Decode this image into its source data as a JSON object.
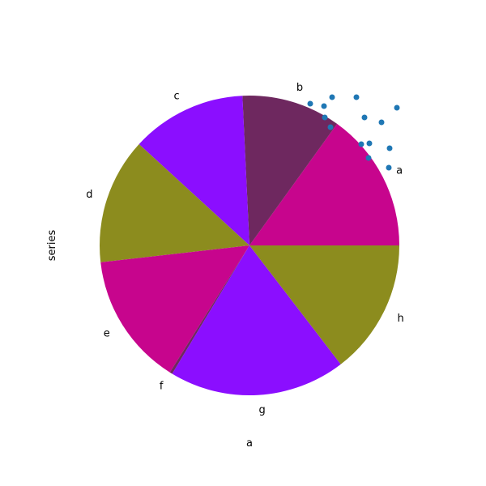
{
  "chart_data": {
    "type": "pie",
    "xlabel": "a",
    "ylabel": "series",
    "categories": [
      "a",
      "b",
      "c",
      "d",
      "e",
      "f",
      "g",
      "h"
    ],
    "values": [
      15.5,
      11.0,
      12.8,
      14.0,
      14.7,
      0.3,
      19.6,
      15.0
    ],
    "colors": [
      "#C7058D",
      "#6E285F",
      "#8B0EFF",
      "#8C8C1E",
      "#C7058D",
      "#6E285F",
      "#8B0EFF",
      "#8C8C1E"
    ],
    "start_angle_deg": 0,
    "direction": "counterclockwise",
    "overlay_scatter": {
      "color": "#1F77B4",
      "point_count": 14,
      "note": "unlabeled scatter markers drawn over the upper-right of the pie"
    }
  }
}
